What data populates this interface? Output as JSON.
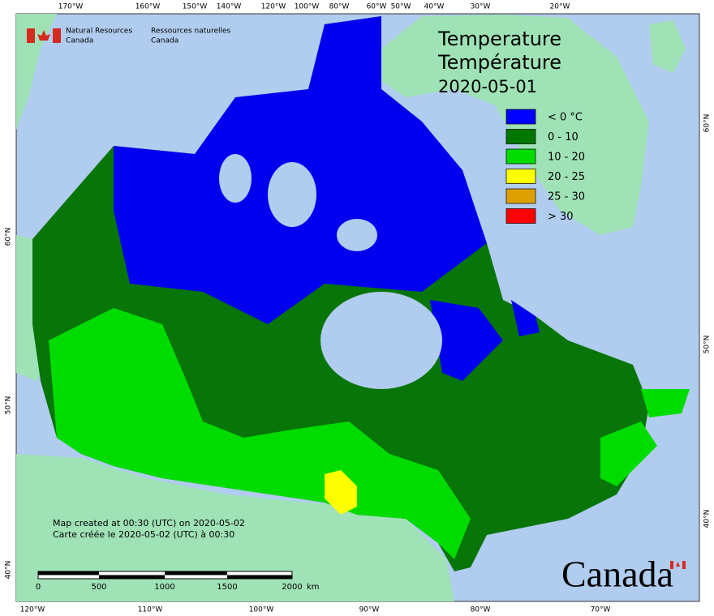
{
  "header": {
    "agency_en": [
      "Natural Resources",
      "Canada"
    ],
    "agency_fr": [
      "Ressources naturelles",
      "Canada"
    ]
  },
  "title": [
    "Temperature",
    "Température",
    "2020-05-01"
  ],
  "legend": [
    {
      "label": "< 0 °C",
      "color": "#0000ff"
    },
    {
      "label": "0 - 10",
      "color": "#007800"
    },
    {
      "label": "10 - 20",
      "color": "#00dc00"
    },
    {
      "label": "20 - 25",
      "color": "#ffff00"
    },
    {
      "label": "25 - 30",
      "color": "#dca000"
    },
    {
      "label": "> 30",
      "color": "#ff0000"
    }
  ],
  "graticule": {
    "top": [
      "170°W",
      "160°W",
      "150°W",
      "140°W",
      "120°W",
      "100°W",
      "80°W",
      "60°W",
      "50°W",
      "40°W",
      "30°W",
      "20°W"
    ],
    "bottom": [
      "120°W",
      "110°W",
      "100°W",
      "90°W",
      "80°W",
      "70°W"
    ],
    "left": [
      "60°N",
      "50°N",
      "40°N"
    ],
    "right": [
      "60°N",
      "50°N",
      "40°N"
    ]
  },
  "notes": [
    "Map created at 00:30 (UTC) on 2020-05-02",
    "Carte créée le 2020-05-02 (UTC) à 00:30"
  ],
  "scale_bar": {
    "labels": [
      "0",
      "500",
      "1000",
      "1500",
      "2000"
    ],
    "unit": "km"
  },
  "wordmark": "Canada"
}
